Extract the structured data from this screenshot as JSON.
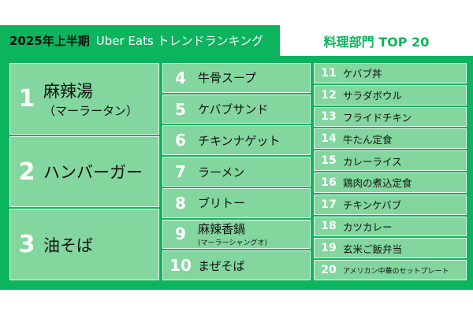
{
  "header": {
    "period": "2025年上半期",
    "title": "Uber Eats トレンドランキング",
    "category": "料理部門  TOP 20"
  },
  "colors": {
    "green": "#0db45e",
    "cell": "#82d69e"
  },
  "top3": [
    {
      "rank": "1",
      "name": "麻辣湯",
      "reading": "（マーラータン）"
    },
    {
      "rank": "2",
      "name": "ハンバーガー"
    },
    {
      "rank": "3",
      "name": "油そば"
    }
  ],
  "mid": [
    {
      "rank": "4",
      "name": "牛骨スープ"
    },
    {
      "rank": "5",
      "name": "ケバブサンド"
    },
    {
      "rank": "6",
      "name": "チキンナゲット"
    },
    {
      "rank": "7",
      "name": "ラーメン"
    },
    {
      "rank": "8",
      "name": "ブリトー"
    },
    {
      "rank": "9",
      "name": "麻辣香鍋",
      "reading": "(マーラーシャングオ)"
    },
    {
      "rank": "10",
      "name": "まぜそば"
    }
  ],
  "rest": [
    {
      "rank": "11",
      "name": "ケバブ丼"
    },
    {
      "rank": "12",
      "name": "サラダボウル"
    },
    {
      "rank": "13",
      "name": "フライドチキン"
    },
    {
      "rank": "14",
      "name": "牛たん定食"
    },
    {
      "rank": "15",
      "name": "カレーライス"
    },
    {
      "rank": "16",
      "name": "鶏肉の煮込定食"
    },
    {
      "rank": "17",
      "name": "チキンケバブ"
    },
    {
      "rank": "18",
      "name": "カツカレー"
    },
    {
      "rank": "19",
      "name": "玄米ご飯弁当"
    },
    {
      "rank": "20",
      "name": "アメリカン中華のセットプレート"
    }
  ]
}
